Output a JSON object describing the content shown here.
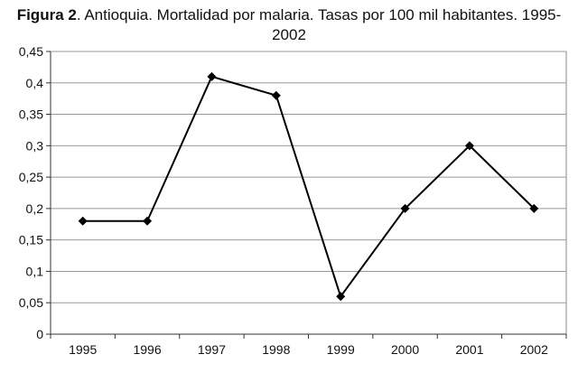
{
  "chart_data": {
    "type": "line",
    "title_bold": "Figura 2",
    "title": ". Antioquia. Mortalidad por malaria. Tasas por 100 mil habitantes. 1995-2002",
    "categories": [
      "1995",
      "1996",
      "1997",
      "1998",
      "1999",
      "2000",
      "2001",
      "2002"
    ],
    "series": [
      {
        "values": [
          0.18,
          0.18,
          0.41,
          0.38,
          0.06,
          0.2,
          0.3,
          0.2
        ]
      }
    ],
    "ylim": [
      0,
      0.45
    ],
    "yticks": [
      "0",
      "0,05",
      "0,1",
      "0,15",
      "0,2",
      "0,25",
      "0,3",
      "0,35",
      "0,4",
      "0,45"
    ],
    "grid": true,
    "line_color": "#000000",
    "marker": "diamond"
  }
}
